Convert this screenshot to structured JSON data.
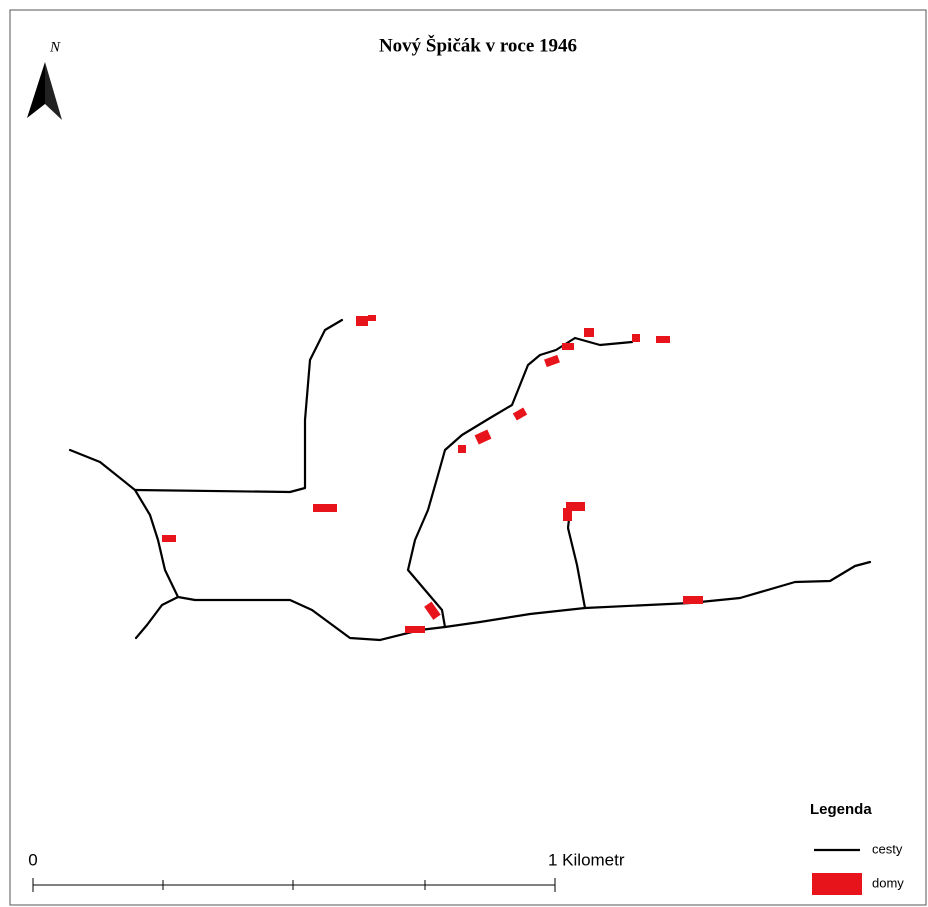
{
  "title": "Nový Špičák v roce 1946",
  "north_arrow": {
    "label": "N"
  },
  "legend": {
    "title": "Legenda",
    "items": [
      {
        "label": "cesty"
      },
      {
        "label": "domy"
      }
    ]
  },
  "scale_bar": {
    "start_label": "0",
    "end_label": "1 Kilometr"
  }
}
